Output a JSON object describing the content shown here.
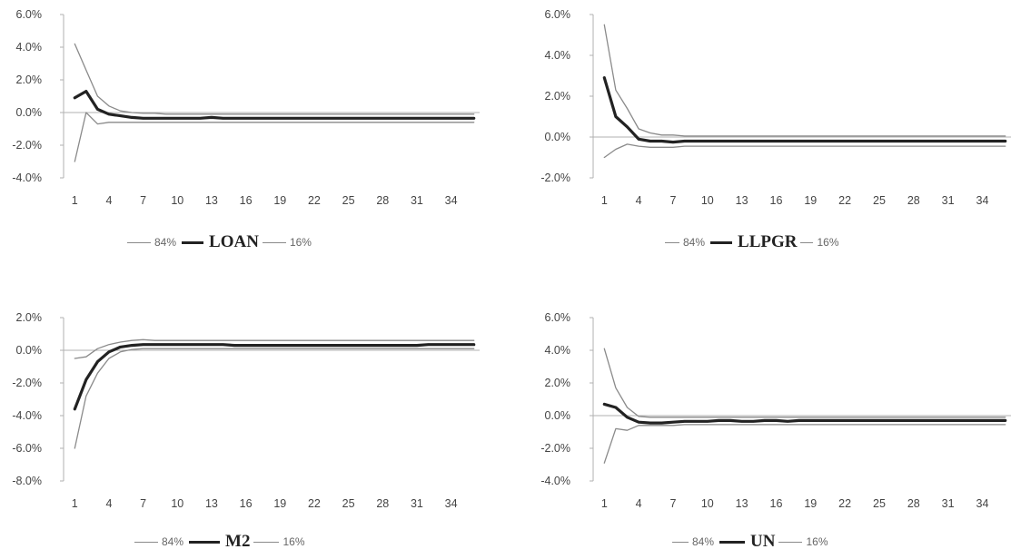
{
  "colors": {
    "median": "#222222",
    "band": "#8a8a8a",
    "axis": "#b0b0b0",
    "text": "#444444"
  },
  "chart_data": [
    {
      "type": "line",
      "ylim": [
        -4,
        6
      ],
      "yticks": [
        "6.0%",
        "4.0%",
        "2.0%",
        "0.0%",
        "-2.0%",
        "-4.0%"
      ],
      "xticks": [
        "1",
        "4",
        "7",
        "10",
        "13",
        "16",
        "19",
        "22",
        "25",
        "28",
        "31",
        "34"
      ],
      "legend": {
        "upper": "84%",
        "name": "LOAN",
        "lower": "16%"
      },
      "series": [
        {
          "name": "84%",
          "values": [
            4.2,
            2.6,
            1.0,
            0.4,
            0.1,
            0.0,
            -0.05,
            -0.05,
            -0.1,
            -0.1,
            -0.1,
            -0.1,
            -0.1,
            -0.1,
            -0.1,
            -0.1,
            -0.1,
            -0.1,
            -0.1,
            -0.1,
            -0.1,
            -0.1,
            -0.1,
            -0.1,
            -0.1,
            -0.1,
            -0.1,
            -0.1,
            -0.1,
            -0.1,
            -0.1,
            -0.1,
            -0.1,
            -0.1,
            -0.1,
            -0.1
          ]
        },
        {
          "name": "LOAN",
          "values": [
            0.9,
            1.3,
            0.2,
            -0.1,
            -0.2,
            -0.3,
            -0.35,
            -0.35,
            -0.35,
            -0.35,
            -0.35,
            -0.35,
            -0.3,
            -0.35,
            -0.35,
            -0.35,
            -0.35,
            -0.35,
            -0.35,
            -0.35,
            -0.35,
            -0.35,
            -0.35,
            -0.35,
            -0.35,
            -0.35,
            -0.35,
            -0.35,
            -0.35,
            -0.35,
            -0.35,
            -0.35,
            -0.35,
            -0.35,
            -0.35,
            -0.35
          ]
        },
        {
          "name": "16%",
          "values": [
            -3.0,
            0.0,
            -0.7,
            -0.6,
            -0.6,
            -0.6,
            -0.6,
            -0.6,
            -0.6,
            -0.6,
            -0.6,
            -0.6,
            -0.6,
            -0.6,
            -0.6,
            -0.6,
            -0.6,
            -0.6,
            -0.6,
            -0.6,
            -0.6,
            -0.6,
            -0.6,
            -0.6,
            -0.6,
            -0.6,
            -0.6,
            -0.6,
            -0.6,
            -0.6,
            -0.6,
            -0.6,
            -0.6,
            -0.6,
            -0.6,
            -0.6
          ]
        }
      ]
    },
    {
      "type": "line",
      "ylim": [
        -2,
        6
      ],
      "yticks": [
        "6.0%",
        "4.0%",
        "2.0%",
        "0.0%",
        "-2.0%"
      ],
      "xticks": [
        "1",
        "4",
        "7",
        "10",
        "13",
        "16",
        "19",
        "22",
        "25",
        "28",
        "31",
        "34"
      ],
      "legend": {
        "upper": "84%",
        "name": "LLPGR",
        "lower": "16%"
      },
      "series": [
        {
          "name": "84%",
          "values": [
            5.5,
            2.3,
            1.4,
            0.4,
            0.2,
            0.1,
            0.1,
            0.05,
            0.05,
            0.05,
            0.05,
            0.05,
            0.05,
            0.05,
            0.05,
            0.05,
            0.05,
            0.05,
            0.05,
            0.05,
            0.05,
            0.05,
            0.05,
            0.05,
            0.05,
            0.05,
            0.05,
            0.05,
            0.05,
            0.05,
            0.05,
            0.05,
            0.05,
            0.05,
            0.05,
            0.05
          ]
        },
        {
          "name": "LLPGR",
          "values": [
            2.9,
            1.0,
            0.5,
            -0.1,
            -0.2,
            -0.2,
            -0.25,
            -0.2,
            -0.2,
            -0.2,
            -0.2,
            -0.2,
            -0.2,
            -0.2,
            -0.2,
            -0.2,
            -0.2,
            -0.2,
            -0.2,
            -0.2,
            -0.2,
            -0.2,
            -0.2,
            -0.2,
            -0.2,
            -0.2,
            -0.2,
            -0.2,
            -0.2,
            -0.2,
            -0.2,
            -0.2,
            -0.2,
            -0.2,
            -0.2,
            -0.2
          ]
        },
        {
          "name": "16%",
          "values": [
            -1.0,
            -0.6,
            -0.35,
            -0.45,
            -0.5,
            -0.5,
            -0.5,
            -0.45,
            -0.45,
            -0.45,
            -0.45,
            -0.45,
            -0.45,
            -0.45,
            -0.45,
            -0.45,
            -0.45,
            -0.45,
            -0.45,
            -0.45,
            -0.45,
            -0.45,
            -0.45,
            -0.45,
            -0.45,
            -0.45,
            -0.45,
            -0.45,
            -0.45,
            -0.45,
            -0.45,
            -0.45,
            -0.45,
            -0.45,
            -0.45,
            -0.45
          ]
        }
      ]
    },
    {
      "type": "line",
      "ylim": [
        -8,
        2
      ],
      "yticks": [
        "2.0%",
        "0.0%",
        "-2.0%",
        "-4.0%",
        "-6.0%",
        "-8.0%"
      ],
      "xticks": [
        "1",
        "4",
        "7",
        "10",
        "13",
        "16",
        "19",
        "22",
        "25",
        "28",
        "31",
        "34"
      ],
      "legend": {
        "upper": "84%",
        "name": "M2",
        "lower": "16%"
      },
      "series": [
        {
          "name": "84%",
          "values": [
            -0.5,
            -0.4,
            0.1,
            0.35,
            0.5,
            0.6,
            0.65,
            0.6,
            0.6,
            0.6,
            0.6,
            0.6,
            0.6,
            0.6,
            0.6,
            0.6,
            0.6,
            0.6,
            0.6,
            0.6,
            0.6,
            0.6,
            0.6,
            0.6,
            0.6,
            0.6,
            0.6,
            0.6,
            0.6,
            0.6,
            0.6,
            0.6,
            0.6,
            0.6,
            0.6,
            0.6
          ]
        },
        {
          "name": "M2",
          "values": [
            -3.6,
            -1.8,
            -0.7,
            -0.1,
            0.2,
            0.3,
            0.35,
            0.35,
            0.35,
            0.35,
            0.35,
            0.35,
            0.35,
            0.35,
            0.3,
            0.3,
            0.3,
            0.3,
            0.3,
            0.3,
            0.3,
            0.3,
            0.3,
            0.3,
            0.3,
            0.3,
            0.3,
            0.3,
            0.3,
            0.3,
            0.3,
            0.35,
            0.35,
            0.35,
            0.35,
            0.35
          ]
        },
        {
          "name": "16%",
          "values": [
            -6.0,
            -2.8,
            -1.4,
            -0.5,
            -0.1,
            0.05,
            0.1,
            0.1,
            0.1,
            0.1,
            0.1,
            0.1,
            0.1,
            0.1,
            0.1,
            0.1,
            0.1,
            0.1,
            0.1,
            0.1,
            0.1,
            0.1,
            0.1,
            0.1,
            0.1,
            0.1,
            0.1,
            0.1,
            0.1,
            0.1,
            0.1,
            0.1,
            0.1,
            0.1,
            0.1,
            0.1
          ]
        }
      ]
    },
    {
      "type": "line",
      "ylim": [
        -4,
        6
      ],
      "yticks": [
        "6.0%",
        "4.0%",
        "2.0%",
        "0.0%",
        "-2.0%",
        "-4.0%"
      ],
      "xticks": [
        "1",
        "4",
        "7",
        "10",
        "13",
        "16",
        "19",
        "22",
        "25",
        "28",
        "31",
        "34"
      ],
      "legend": {
        "upper": "84%",
        "name": "UN",
        "lower": "16%"
      },
      "series": [
        {
          "name": "84%",
          "values": [
            4.1,
            1.7,
            0.5,
            -0.05,
            -0.1,
            -0.1,
            -0.1,
            -0.1,
            -0.1,
            -0.1,
            -0.1,
            -0.1,
            -0.1,
            -0.1,
            -0.1,
            -0.1,
            -0.1,
            -0.1,
            -0.1,
            -0.1,
            -0.1,
            -0.1,
            -0.1,
            -0.1,
            -0.1,
            -0.1,
            -0.1,
            -0.1,
            -0.1,
            -0.1,
            -0.1,
            -0.1,
            -0.1,
            -0.1,
            -0.1,
            -0.1
          ]
        },
        {
          "name": "UN",
          "values": [
            0.7,
            0.5,
            -0.1,
            -0.4,
            -0.45,
            -0.45,
            -0.4,
            -0.35,
            -0.35,
            -0.35,
            -0.3,
            -0.3,
            -0.35,
            -0.35,
            -0.3,
            -0.3,
            -0.35,
            -0.3,
            -0.3,
            -0.3,
            -0.3,
            -0.3,
            -0.3,
            -0.3,
            -0.3,
            -0.3,
            -0.3,
            -0.3,
            -0.3,
            -0.3,
            -0.3,
            -0.3,
            -0.3,
            -0.3,
            -0.3,
            -0.3
          ]
        },
        {
          "name": "16%",
          "values": [
            -2.9,
            -0.8,
            -0.9,
            -0.6,
            -0.6,
            -0.6,
            -0.6,
            -0.55,
            -0.55,
            -0.55,
            -0.55,
            -0.55,
            -0.55,
            -0.55,
            -0.55,
            -0.55,
            -0.55,
            -0.55,
            -0.55,
            -0.55,
            -0.55,
            -0.55,
            -0.55,
            -0.55,
            -0.55,
            -0.55,
            -0.55,
            -0.55,
            -0.55,
            -0.55,
            -0.55,
            -0.55,
            -0.55,
            -0.55,
            -0.55,
            -0.55
          ]
        }
      ]
    }
  ]
}
